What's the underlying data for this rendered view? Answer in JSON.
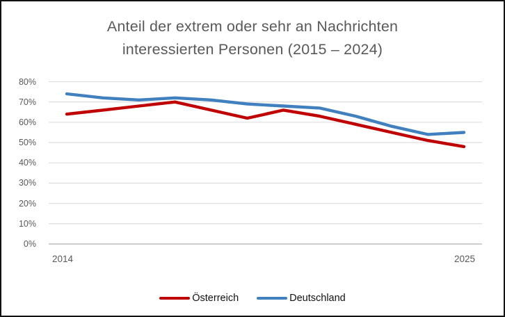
{
  "chart": {
    "title_line1": "Anteil der extrem oder sehr an Nachrichten",
    "title_line2": "interessierten Personen (2015 – 2024)"
  },
  "chart_data": {
    "type": "line",
    "title": "Anteil der extrem oder sehr an Nachrichten interessierten Personen (2015 – 2024)",
    "x": [
      2014,
      2015,
      2016,
      2017,
      2018,
      2019,
      2020,
      2021,
      2022,
      2023,
      2024,
      2025
    ],
    "x_axis_labels": [
      "2014",
      "2025"
    ],
    "y_axis_ticks": [
      "80%",
      "70%",
      "60%",
      "50%",
      "40%",
      "30%",
      "20%",
      "10%",
      "0%"
    ],
    "ylim": [
      0,
      80
    ],
    "grid": true,
    "legend_position": "bottom",
    "series": [
      {
        "name": "Österreich",
        "color": "#C00000",
        "values": [
          64,
          66,
          68,
          70,
          66,
          62,
          66,
          63,
          59,
          55,
          51,
          48
        ]
      },
      {
        "name": "Deutschland",
        "color": "#4080BF",
        "values": [
          74,
          72,
          71,
          72,
          71,
          69,
          68,
          67,
          63,
          58,
          54,
          55
        ]
      }
    ],
    "colors": {
      "grid": "#D9D9D9",
      "baseline": "#BFBFBF",
      "axis_text": "#595959",
      "title_text": "#595959",
      "legend_text": "#111111"
    }
  }
}
